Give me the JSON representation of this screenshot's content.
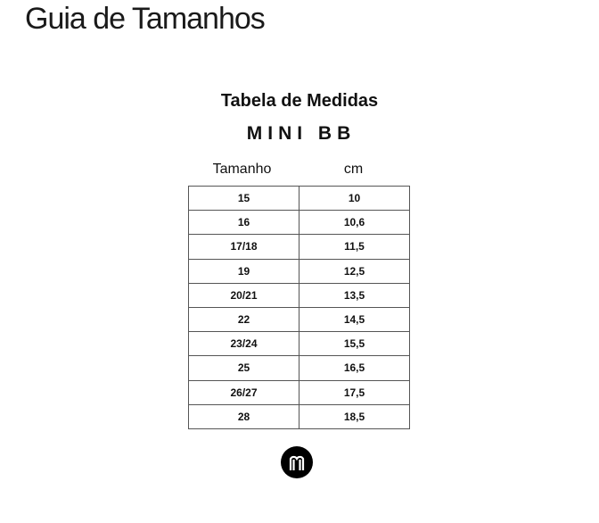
{
  "page_title": "Guia de Tamanhos",
  "table_title": "Tabela de Medidas",
  "table_subtitle": "MINI BB",
  "columns": [
    "Tamanho",
    "cm"
  ],
  "rows": [
    [
      "15",
      "10"
    ],
    [
      "16",
      "10,6"
    ],
    [
      "17/18",
      "11,5"
    ],
    [
      "19",
      "12,5"
    ],
    [
      "20/21",
      "13,5"
    ],
    [
      "22",
      "14,5"
    ],
    [
      "23/24",
      "15,5"
    ],
    [
      "25",
      "16,5"
    ],
    [
      "26/27",
      "17,5"
    ],
    [
      "28",
      "18,5"
    ]
  ],
  "logo": "M"
}
